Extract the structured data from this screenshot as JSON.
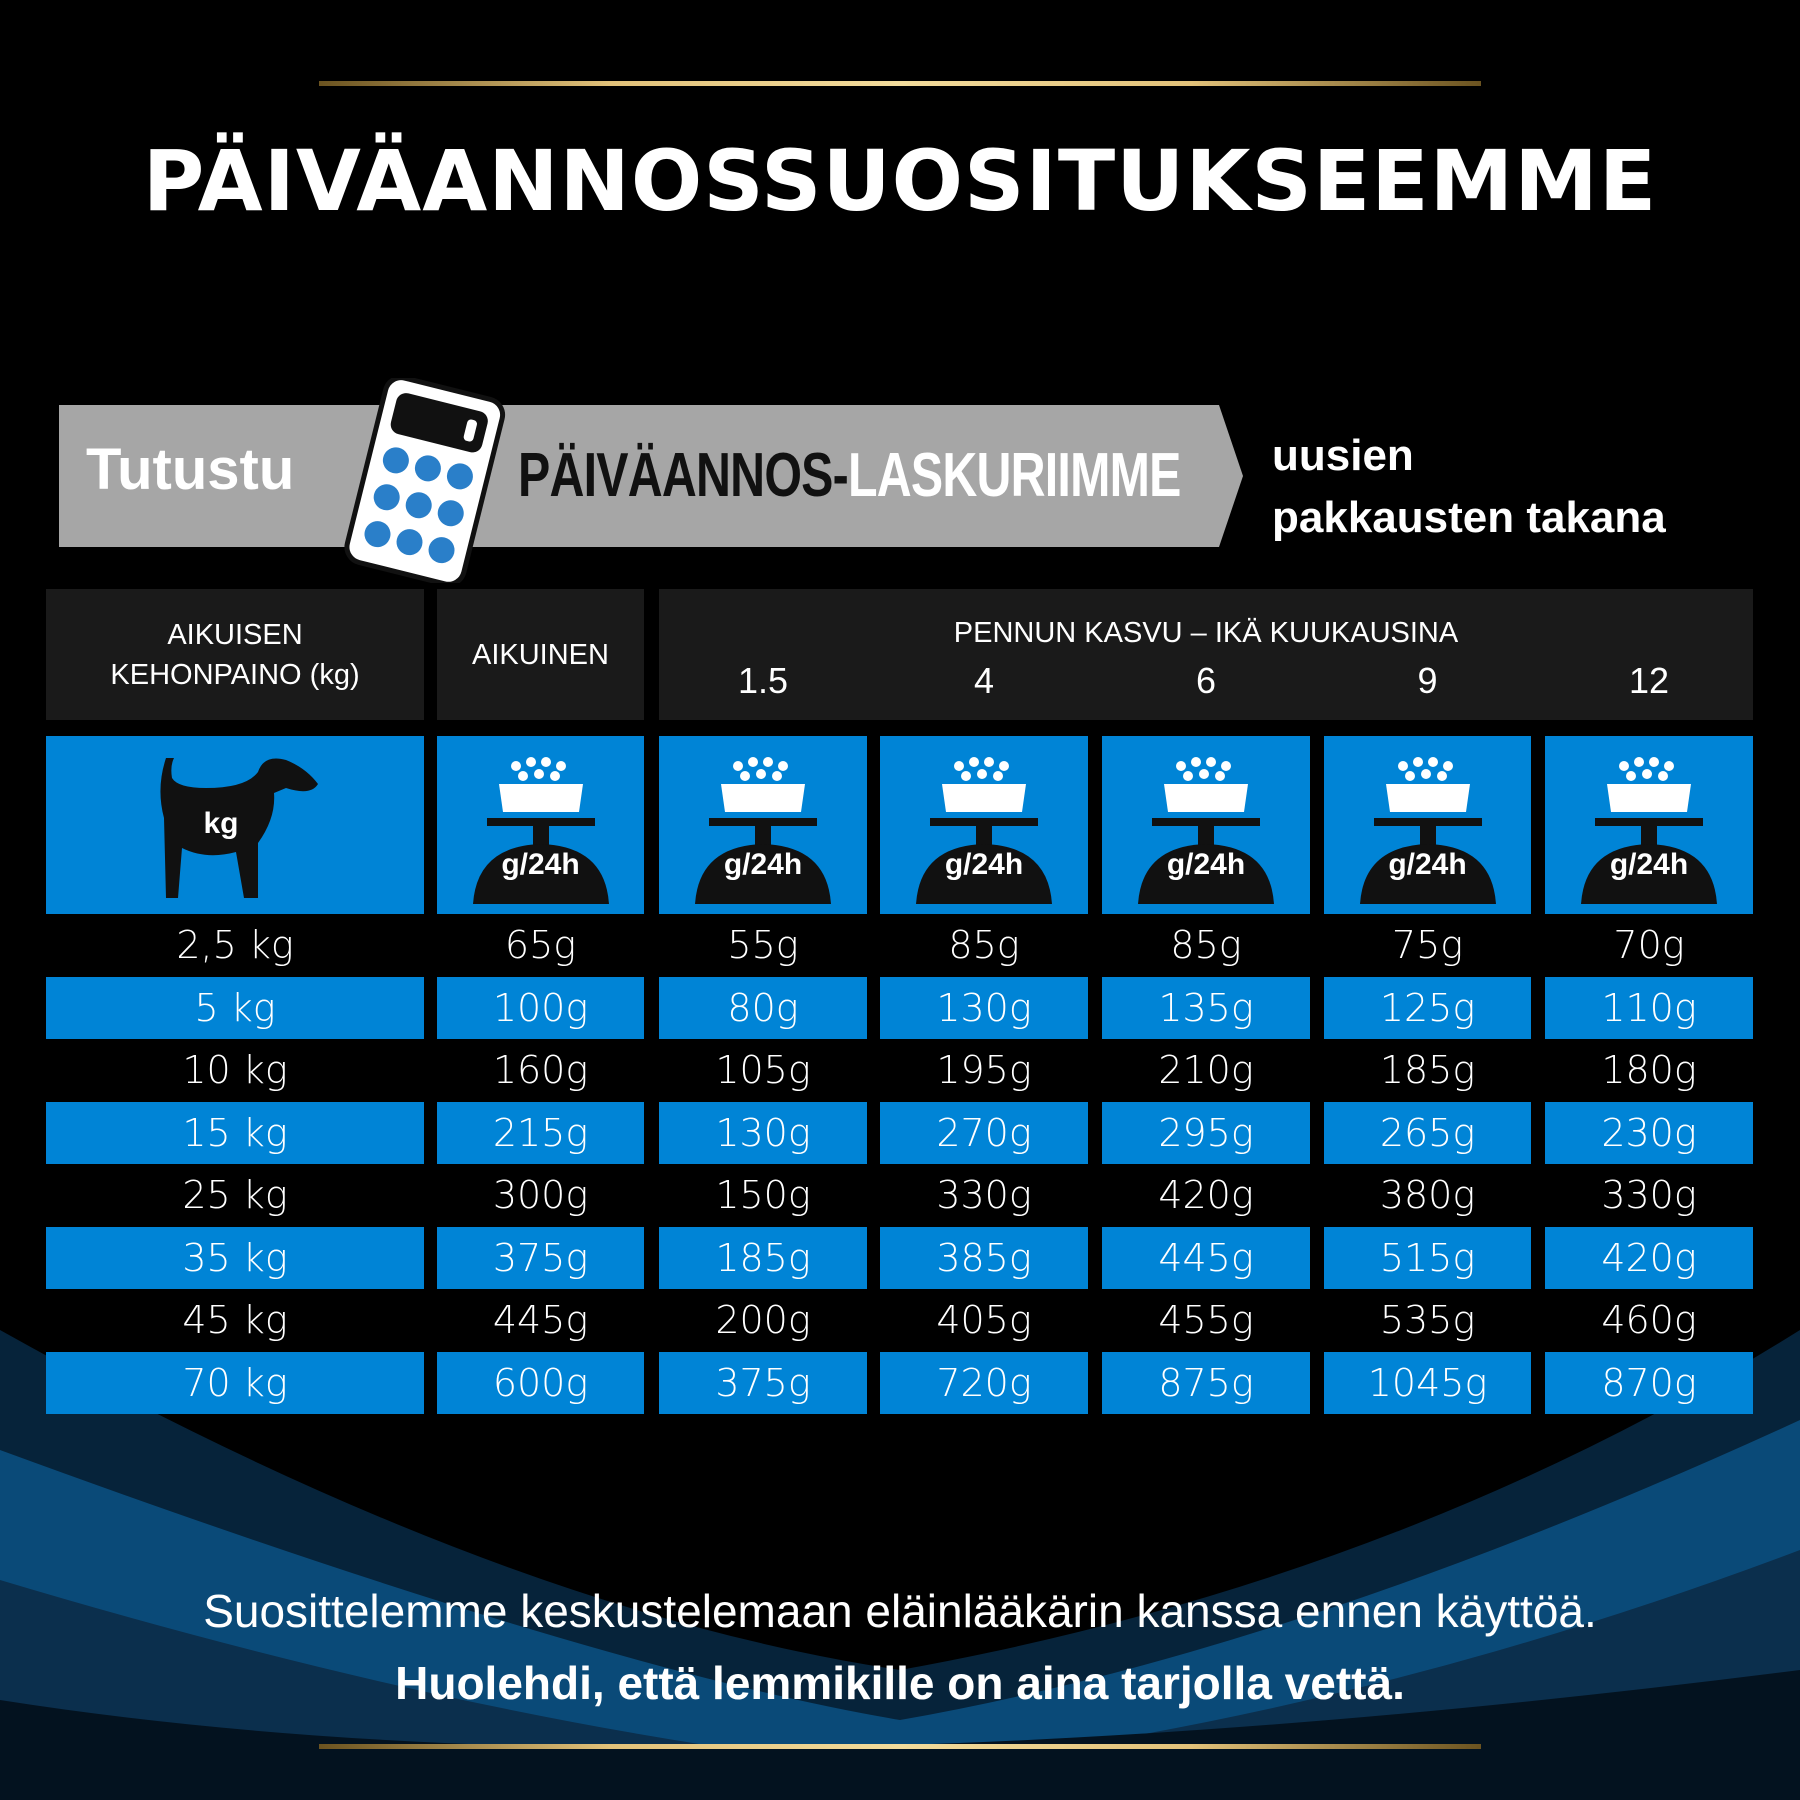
{
  "title": "PÄIVÄANNOSSUOSITUKSEEMME",
  "banner": {
    "lead": "Tutustu",
    "calculator_part1": "PÄIVÄANNOS-",
    "calculator_part2": "LASKURIIMME",
    "side_line1": "uusien",
    "side_line2": "pakkausten takana",
    "icon": "calculator-icon"
  },
  "table": {
    "header_weight_line1": "AIKUISEN",
    "header_weight_line2": "KEHONPAINO (kg)",
    "header_adult": "AIKUINEN",
    "header_puppy": "PENNUN KASVU – IKÄ KUUKAUSINA",
    "ages": [
      "1.5",
      "4",
      "6",
      "9",
      "12"
    ],
    "icon_weight_label": "kg",
    "icon_portion_label": "g/24h",
    "colors": {
      "blue": "#0084d6",
      "header": "#1a1a1a"
    },
    "rows": [
      [
        "2,5 kg",
        "65g",
        "55g",
        "85g",
        "85g",
        "75g",
        "70g"
      ],
      [
        "5 kg",
        "100g",
        "80g",
        "130g",
        "135g",
        "125g",
        "110g"
      ],
      [
        "10 kg",
        "160g",
        "105g",
        "195g",
        "210g",
        "185g",
        "180g"
      ],
      [
        "15 kg",
        "215g",
        "130g",
        "270g",
        "295g",
        "265g",
        "230g"
      ],
      [
        "25 kg",
        "300g",
        "150g",
        "330g",
        "420g",
        "380g",
        "330g"
      ],
      [
        "35 kg",
        "375g",
        "185g",
        "385g",
        "445g",
        "515g",
        "420g"
      ],
      [
        "45 kg",
        "445g",
        "200g",
        "405g",
        "455g",
        "535g",
        "460g"
      ],
      [
        "70 kg",
        "600g",
        "375g",
        "720g",
        "875g",
        "1045g",
        "870g"
      ]
    ]
  },
  "footer": {
    "line1": "Suosittelemme keskustelemaan eläinlääkärin kanssa ennen käyttöä.",
    "line2": "Huolehdi, että lemmikille on aina tarjolla vettä."
  }
}
